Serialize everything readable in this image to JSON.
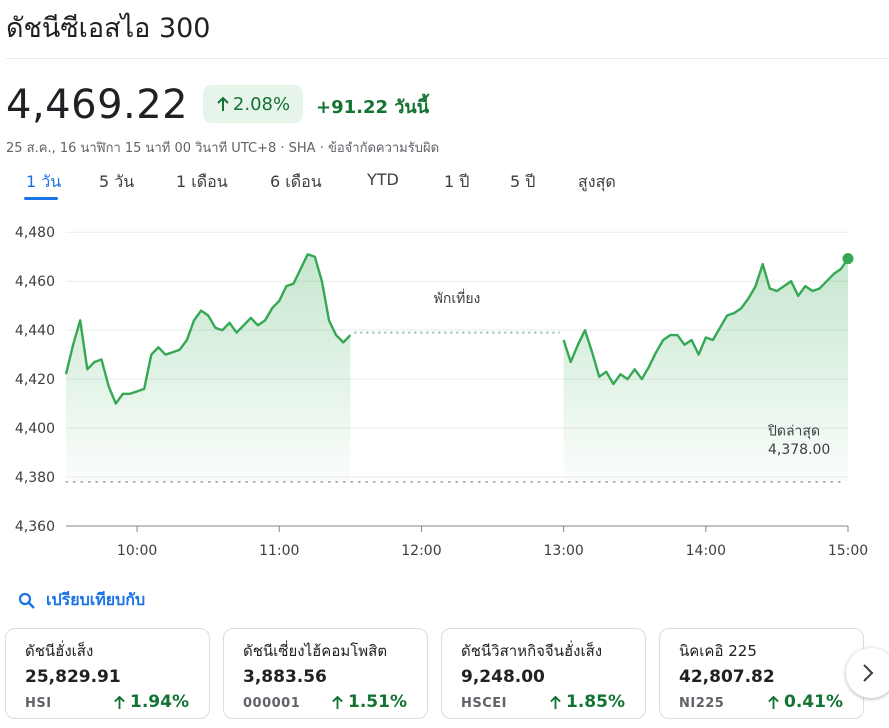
{
  "header": {
    "title": "ดัชนีซีเอสไอ 300"
  },
  "quote": {
    "price": "4,469.22",
    "pct_change": "2.08%",
    "abs_change": "+91.22 วันนี้",
    "meta": "25 ส.ค., 16 นาฬิกา 15 นาที 00 วินาที UTC+8 · SHA · ข้อจำกัดความรับผิด",
    "accent": "#137333",
    "badge_bg": "#e6f4ea",
    "trend_icon": "arrow-up-icon"
  },
  "tabs": [
    {
      "label": "1 วัน",
      "active": true
    },
    {
      "label": "5 วัน"
    },
    {
      "label": "1 เดือน"
    },
    {
      "label": "6 เดือน"
    },
    {
      "label": "YTD"
    },
    {
      "label": "1 ปี"
    },
    {
      "label": "5 ปี"
    },
    {
      "label": "สูงสุด"
    }
  ],
  "chart_data": {
    "type": "area",
    "y_ticks": [
      "4,480",
      "4,460",
      "4,440",
      "4,420",
      "4,400",
      "4,380",
      "4,360"
    ],
    "x_ticks": [
      "10:00",
      "11:00",
      "12:00",
      "13:00",
      "14:00",
      "15:00"
    ],
    "ylim": [
      4360,
      4485
    ],
    "xlim": [
      "09:30",
      "15:00"
    ],
    "grid": true,
    "line_color": "#34a853",
    "break_label": "พักเที่ยง",
    "break_level": 4439,
    "previous_close_label": "ปิดล่าสุด",
    "previous_close_value": "4,378.00",
    "previous_close": 4378,
    "morning_session": {
      "time": [
        "09:30",
        "09:33",
        "09:36",
        "09:39",
        "09:42",
        "09:45",
        "09:48",
        "09:51",
        "09:54",
        "09:57",
        "10:00",
        "10:03",
        "10:06",
        "10:09",
        "10:12",
        "10:15",
        "10:18",
        "10:21",
        "10:24",
        "10:27",
        "10:30",
        "10:33",
        "10:36",
        "10:39",
        "10:42",
        "10:45",
        "10:48",
        "10:51",
        "10:54",
        "10:57",
        "11:00",
        "11:03",
        "11:06",
        "11:09",
        "11:12",
        "11:15",
        "11:18",
        "11:21",
        "11:24",
        "11:27",
        "11:30"
      ],
      "values": [
        4422,
        4434,
        4444,
        4424,
        4427,
        4428,
        4417,
        4410,
        4414,
        4414,
        4415,
        4416,
        4430,
        4433,
        4430,
        4431,
        4432,
        4436,
        4444,
        4448,
        4446,
        4441,
        4440,
        4443,
        4439,
        4442,
        4445,
        4442,
        4444,
        4449,
        4452,
        4458,
        4459,
        4465,
        4471,
        4470,
        4460,
        4444,
        4438,
        4435,
        4438
      ]
    },
    "afternoon_session": {
      "time": [
        "13:00",
        "13:03",
        "13:06",
        "13:09",
        "13:12",
        "13:15",
        "13:18",
        "13:21",
        "13:24",
        "13:27",
        "13:30",
        "13:33",
        "13:36",
        "13:39",
        "13:42",
        "13:45",
        "13:48",
        "13:51",
        "13:54",
        "13:57",
        "14:00",
        "14:03",
        "14:06",
        "14:09",
        "14:12",
        "14:15",
        "14:18",
        "14:21",
        "14:24",
        "14:27",
        "14:30",
        "14:33",
        "14:36",
        "14:39",
        "14:42",
        "14:45",
        "14:48",
        "14:51",
        "14:54",
        "14:57",
        "15:00"
      ],
      "values": [
        4436,
        4427,
        4434,
        4440,
        4431,
        4421,
        4423,
        4418,
        4422,
        4420,
        4424,
        4420,
        4425,
        4431,
        4436,
        4438,
        4438,
        4434,
        4436,
        4430,
        4437,
        4436,
        4441,
        4446,
        4447,
        4449,
        4453,
        4458,
        4467,
        4457,
        4456,
        4458,
        4460,
        4454,
        4458,
        4456,
        4457,
        4460,
        4463,
        4465,
        4469.22
      ]
    }
  },
  "compare": {
    "label": "เปรียบเทียบกับ",
    "icon": "search-icon"
  },
  "cards": [
    {
      "name": "ดัชนีฮั่งเส็ง",
      "value": "25,829.91",
      "symbol": "HSI",
      "pct": "1.94%"
    },
    {
      "name": "ดัชนีเซี่ยงไฮ้คอมโพสิต",
      "value": "3,883.56",
      "symbol": "000001",
      "pct": "1.51%"
    },
    {
      "name": "ดัชนีวิสาหกิจจีนฮั่งเส็ง",
      "value": "9,248.00",
      "symbol": "HSCEI",
      "pct": "1.85%"
    },
    {
      "name": "นิคเคอิ 225",
      "value": "42,807.82",
      "symbol": "NI225",
      "pct": "0.41%"
    }
  ]
}
